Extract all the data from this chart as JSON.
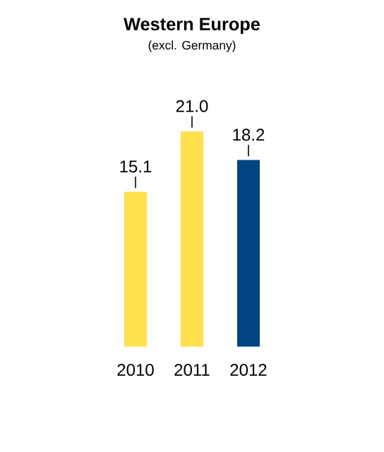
{
  "chart_data": {
    "type": "bar",
    "title": "Western Europe",
    "subtitle": "(excl. Germany)",
    "categories": [
      "2010",
      "2011",
      "2012"
    ],
    "values": [
      15.1,
      21.0,
      18.2
    ],
    "value_labels": [
      "15.1",
      "21.0",
      "18.2"
    ],
    "colors": [
      "#ffe150",
      "#ffe150",
      "#004481"
    ]
  }
}
